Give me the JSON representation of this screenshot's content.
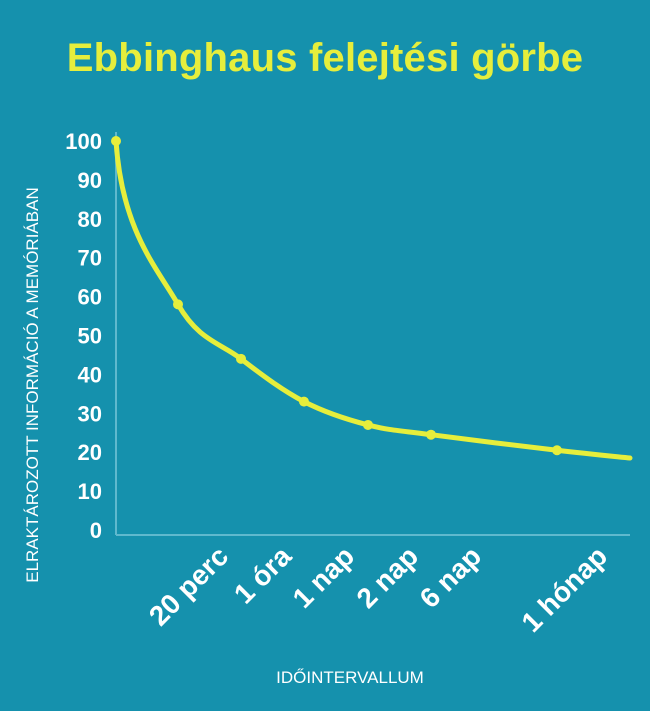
{
  "colors": {
    "background": "#1591ad",
    "title": "#e6ee3c",
    "curve": "#e6ee3c",
    "axis": "#5fb9ce",
    "text": "#ffffff"
  },
  "chart_data": {
    "type": "line",
    "title": "Ebbinghaus felejtési görbe",
    "xlabel": "IDŐINTERVALLUM",
    "ylabel": "ELRAKTÁROZOTT INFORMÁCIÓ A MEMÓRIÁBAN",
    "ylim": [
      0,
      100
    ],
    "yticks": [
      100,
      90,
      80,
      70,
      60,
      50,
      40,
      30,
      20,
      10,
      0
    ],
    "categories": [
      "20 perc",
      "1 óra",
      "1 nap",
      "2 nap",
      "6 nap",
      "1 hónap"
    ],
    "grid": false,
    "series": [
      {
        "values": [
          58,
          44,
          33,
          27,
          24.5,
          20.5
        ]
      }
    ]
  }
}
